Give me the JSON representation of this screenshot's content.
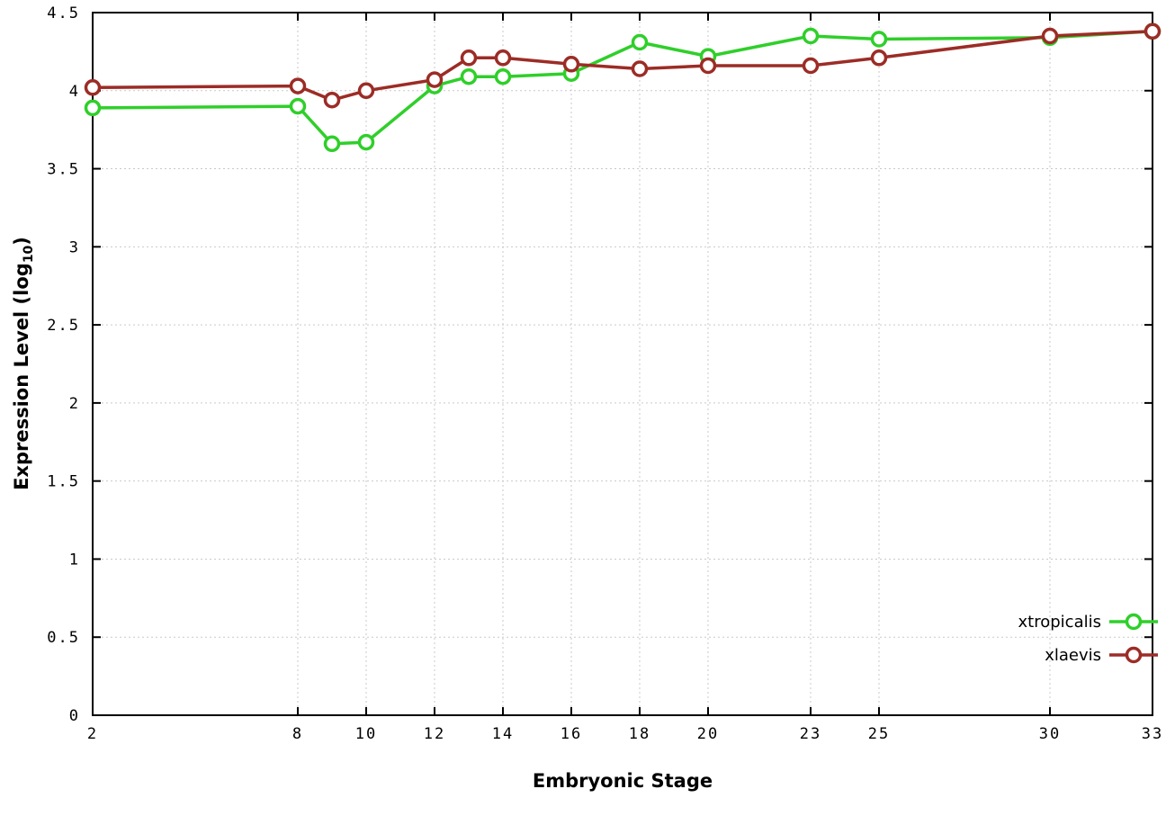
{
  "chart_data": {
    "type": "line",
    "title": "",
    "xlabel": "Embryonic Stage",
    "ylabel": "Expression Level (log10)",
    "ylabel_main": "Expression Level (log",
    "ylabel_sub": "10",
    "ylabel_close": ")",
    "x": [
      2,
      8,
      9,
      10,
      12,
      13,
      14,
      16,
      18,
      20,
      23,
      25,
      30,
      33
    ],
    "xlim": [
      2,
      33
    ],
    "ylim": [
      0,
      4.5
    ],
    "xticks": [
      2,
      8,
      10,
      12,
      14,
      16,
      18,
      20,
      23,
      25,
      30,
      33
    ],
    "yticks": [
      0,
      0.5,
      1,
      1.5,
      2,
      2.5,
      3,
      3.5,
      4,
      4.5
    ],
    "ytick_labels": [
      "0",
      "0.5",
      "1",
      "1.5",
      "2",
      "2.5",
      "3",
      "3.5",
      "4",
      "4.5"
    ],
    "grid": true,
    "legend_position": "bottom-right",
    "marker": "open-circle",
    "series": [
      {
        "name": "xtropicalis",
        "color": "#2fcf2a",
        "values": [
          3.89,
          3.9,
          3.66,
          3.67,
          4.03,
          4.09,
          4.09,
          4.11,
          4.31,
          4.22,
          4.35,
          4.33,
          4.34,
          4.38
        ]
      },
      {
        "name": "xlaevis",
        "color": "#9c2c26",
        "values": [
          4.02,
          4.03,
          3.94,
          4.0,
          4.07,
          4.21,
          4.21,
          4.17,
          4.14,
          4.16,
          4.16,
          4.21,
          4.35,
          4.38
        ]
      }
    ]
  }
}
